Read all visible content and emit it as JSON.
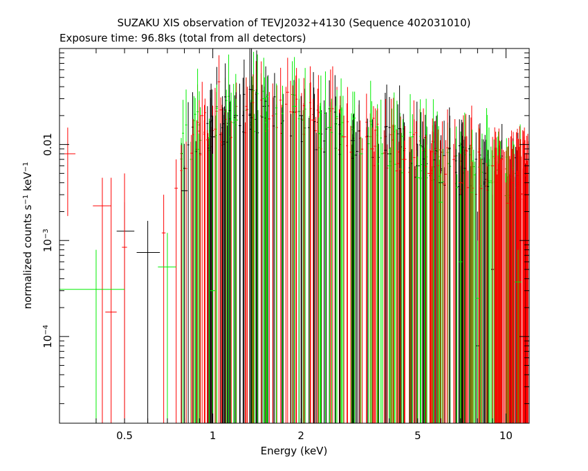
{
  "chart_data": {
    "type": "scatter",
    "title": "SUZAKU XIS observation of TEVJ2032+4130 (Sequence 402031010)",
    "subtitle": "Exposure time: 96.8ks (total from all detectors)",
    "xlabel": "Energy (keV)",
    "ylabel": {
      "prefix": "normalized counts s",
      "exp1": "−1",
      "middle": " keV",
      "exp2": "−1"
    },
    "x_scale": "log",
    "y_scale": "log",
    "xlim": [
      0.3,
      12
    ],
    "ylim": [
      1.25e-05,
      0.1
    ],
    "x_ticks": [
      {
        "value": 0.5,
        "label": "0.5"
      },
      {
        "value": 1,
        "label": "1"
      },
      {
        "value": 2,
        "label": "2"
      },
      {
        "value": 5,
        "label": "5"
      },
      {
        "value": 10,
        "label": "10"
      }
    ],
    "y_ticks": [
      {
        "value": 0.0001,
        "base": "10",
        "exp": "−4"
      },
      {
        "value": 0.001,
        "base": "10",
        "exp": "−3"
      },
      {
        "value": 0.01,
        "base": "0.01",
        "exp": ""
      }
    ],
    "series_colors": [
      "#000000",
      "#ff0000",
      "#00ee00"
    ],
    "series": [
      {
        "color": "#000000",
        "points": [
          {
            "x": 0.5,
            "xlo": 0.47,
            "xhi": 0.54,
            "y": 0.00125,
            "ylo": 1.25e-05,
            "yhi": 0.0025
          },
          {
            "x": 0.6,
            "xlo": 0.55,
            "xhi": 0.66,
            "y": 0.00075,
            "ylo": 1.25e-05,
            "yhi": 0.0016
          },
          {
            "x": 0.8,
            "xlo": 0.78,
            "xhi": 0.82,
            "y": 0.0033,
            "ylo": 1.25e-05,
            "yhi": 0.006
          },
          {
            "x": 1.0,
            "xlo": 0.98,
            "xhi": 1.02,
            "y": 0.012,
            "ylo": 1.25e-05,
            "yhi": 0.02
          },
          {
            "x": 1.2,
            "xlo": 1.18,
            "xhi": 1.22,
            "y": 0.02,
            "ylo": 1.25e-05,
            "yhi": 0.035
          },
          {
            "x": 1.5,
            "xlo": 1.48,
            "xhi": 1.52,
            "y": 0.025,
            "ylo": 1.25e-05,
            "yhi": 0.04
          },
          {
            "x": 2.0,
            "xlo": 1.97,
            "xhi": 2.03,
            "y": 0.02,
            "ylo": 1.25e-05,
            "yhi": 0.032
          },
          {
            "x": 2.5,
            "xlo": 2.46,
            "xhi": 2.54,
            "y": 0.015,
            "ylo": 1.25e-05,
            "yhi": 0.024
          },
          {
            "x": 3.0,
            "xlo": 2.95,
            "xhi": 3.05,
            "y": 0.011,
            "ylo": 1.25e-05,
            "yhi": 0.018
          },
          {
            "x": 4.0,
            "xlo": 3.94,
            "xhi": 4.06,
            "y": 0.008,
            "ylo": 1.25e-05,
            "yhi": 0.013
          },
          {
            "x": 5.0,
            "xlo": 4.92,
            "xhi": 5.08,
            "y": 0.006,
            "ylo": 1.25e-05,
            "yhi": 0.01
          },
          {
            "x": 6.0,
            "xlo": 5.9,
            "xhi": 6.1,
            "y": 0.004,
            "ylo": 1.25e-05,
            "yhi": 0.008
          },
          {
            "x": 7.0,
            "xlo": 6.9,
            "xhi": 7.1,
            "y": 0.003,
            "ylo": 1.25e-05,
            "yhi": 0.006
          },
          {
            "x": 8.0,
            "xlo": 7.9,
            "xhi": 8.1,
            "y": 8e-05,
            "ylo": 1.25e-05,
            "yhi": 0.002
          },
          {
            "x": 9.0,
            "xlo": 8.9,
            "xhi": 9.1,
            "y": 0.0005,
            "ylo": 1.25e-05,
            "yhi": 0.003
          }
        ]
      },
      {
        "color": "#ff0000",
        "points": [
          {
            "x": 0.32,
            "xlo": 0.31,
            "xhi": 0.34,
            "y": 0.008,
            "ylo": 0.0018,
            "yhi": 0.015
          },
          {
            "x": 0.42,
            "xlo": 0.39,
            "xhi": 0.45,
            "y": 0.0023,
            "ylo": 1.25e-05,
            "yhi": 0.0045
          },
          {
            "x": 0.45,
            "xlo": 0.43,
            "xhi": 0.47,
            "y": 0.00018,
            "ylo": 1.25e-05,
            "yhi": 0.0045
          },
          {
            "x": 0.5,
            "xlo": 0.49,
            "xhi": 0.51,
            "y": 0.00085,
            "ylo": 1.25e-05,
            "yhi": 0.005
          },
          {
            "x": 0.68,
            "xlo": 0.67,
            "xhi": 0.69,
            "y": 0.0012,
            "ylo": 1.25e-05,
            "yhi": 0.003
          },
          {
            "x": 0.75,
            "xlo": 0.74,
            "xhi": 0.76,
            "y": 0.0035,
            "ylo": 1.25e-05,
            "yhi": 0.007
          },
          {
            "x": 0.92,
            "xlo": 0.91,
            "xhi": 0.93,
            "y": 0.02,
            "ylo": 1.25e-05,
            "yhi": 0.045
          },
          {
            "x": 1.05,
            "xlo": 1.04,
            "xhi": 1.06,
            "y": 0.045,
            "ylo": 1.25e-05,
            "yhi": 0.085
          },
          {
            "x": 1.3,
            "xlo": 1.29,
            "xhi": 1.31,
            "y": 0.025,
            "ylo": 1.25e-05,
            "yhi": 0.05
          },
          {
            "x": 1.8,
            "xlo": 1.78,
            "xhi": 1.82,
            "y": 0.035,
            "ylo": 1.25e-05,
            "yhi": 0.08
          },
          {
            "x": 2.2,
            "xlo": 2.17,
            "xhi": 2.23,
            "y": 0.018,
            "ylo": 1.25e-05,
            "yhi": 0.03
          },
          {
            "x": 2.8,
            "xlo": 2.75,
            "xhi": 2.85,
            "y": 0.012,
            "ylo": 1.25e-05,
            "yhi": 0.02
          },
          {
            "x": 3.5,
            "xlo": 3.45,
            "xhi": 3.55,
            "y": 0.009,
            "ylo": 1.25e-05,
            "yhi": 0.015
          },
          {
            "x": 4.5,
            "xlo": 4.42,
            "xhi": 4.58,
            "y": 0.007,
            "ylo": 1.25e-05,
            "yhi": 0.011
          },
          {
            "x": 5.5,
            "xlo": 5.4,
            "xhi": 5.6,
            "y": 0.005,
            "ylo": 1.25e-05,
            "yhi": 0.009
          },
          {
            "x": 7.0,
            "xlo": 6.9,
            "xhi": 7.1,
            "y": 0.004,
            "ylo": 1.25e-05,
            "yhi": 0.008
          },
          {
            "x": 9.0,
            "xlo": 8.9,
            "xhi": 9.1,
            "y": 0.006,
            "ylo": 1.25e-05,
            "yhi": 0.012
          },
          {
            "x": 10.5,
            "xlo": 10.4,
            "xhi": 10.6,
            "y": 0.004,
            "ylo": 1.25e-05,
            "yhi": 0.009
          },
          {
            "x": 11.5,
            "xlo": 11.4,
            "xhi": 11.6,
            "y": 0.008,
            "ylo": 1.25e-05,
            "yhi": 0.012
          }
        ]
      },
      {
        "color": "#00ee00",
        "points": [
          {
            "x": 0.4,
            "xlo": 0.3,
            "xhi": 0.5,
            "y": 0.00031,
            "ylo": 1.25e-05,
            "yhi": 0.0008
          },
          {
            "x": 0.7,
            "xlo": 0.65,
            "xhi": 0.75,
            "y": 0.00053,
            "ylo": 1.25e-05,
            "yhi": 0.0012
          },
          {
            "x": 1.0,
            "xlo": 0.98,
            "xhi": 1.02,
            "y": 0.0003,
            "ylo": 1.25e-05,
            "yhi": 0.008
          },
          {
            "x": 1.2,
            "xlo": 1.18,
            "xhi": 1.22,
            "y": 0.018,
            "ylo": 1.25e-05,
            "yhi": 0.03
          },
          {
            "x": 1.5,
            "xlo": 1.48,
            "xhi": 1.52,
            "y": 0.03,
            "ylo": 1.25e-05,
            "yhi": 0.05
          },
          {
            "x": 1.9,
            "xlo": 1.87,
            "xhi": 1.93,
            "y": 0.025,
            "ylo": 1.25e-05,
            "yhi": 0.045
          },
          {
            "x": 2.5,
            "xlo": 2.46,
            "xhi": 2.54,
            "y": 0.015,
            "ylo": 1.25e-05,
            "yhi": 0.025
          },
          {
            "x": 3.2,
            "xlo": 3.15,
            "xhi": 3.25,
            "y": 0.008,
            "ylo": 1.25e-05,
            "yhi": 0.012
          },
          {
            "x": 4.0,
            "xlo": 3.94,
            "xhi": 4.06,
            "y": 0.006,
            "ylo": 1.25e-05,
            "yhi": 0.009
          },
          {
            "x": 5.0,
            "xlo": 4.92,
            "xhi": 5.08,
            "y": 0.0045,
            "ylo": 1.25e-05,
            "yhi": 0.0075
          },
          {
            "x": 6.0,
            "xlo": 5.9,
            "xhi": 6.1,
            "y": 0.0025,
            "ylo": 1.25e-05,
            "yhi": 0.005
          },
          {
            "x": 7.0,
            "xlo": 6.9,
            "xhi": 7.1,
            "y": 0.0006,
            "ylo": 1.25e-05,
            "yhi": 0.003
          },
          {
            "x": 8.0,
            "xlo": 7.9,
            "xhi": 8.1,
            "y": 0.00025,
            "ylo": 1.25e-05,
            "yhi": 0.001
          },
          {
            "x": 11.0,
            "xlo": 10.7,
            "xhi": 11.3,
            "y": 0.00037,
            "ylo": 1.25e-05,
            "yhi": 0.0008
          }
        ]
      }
    ]
  }
}
